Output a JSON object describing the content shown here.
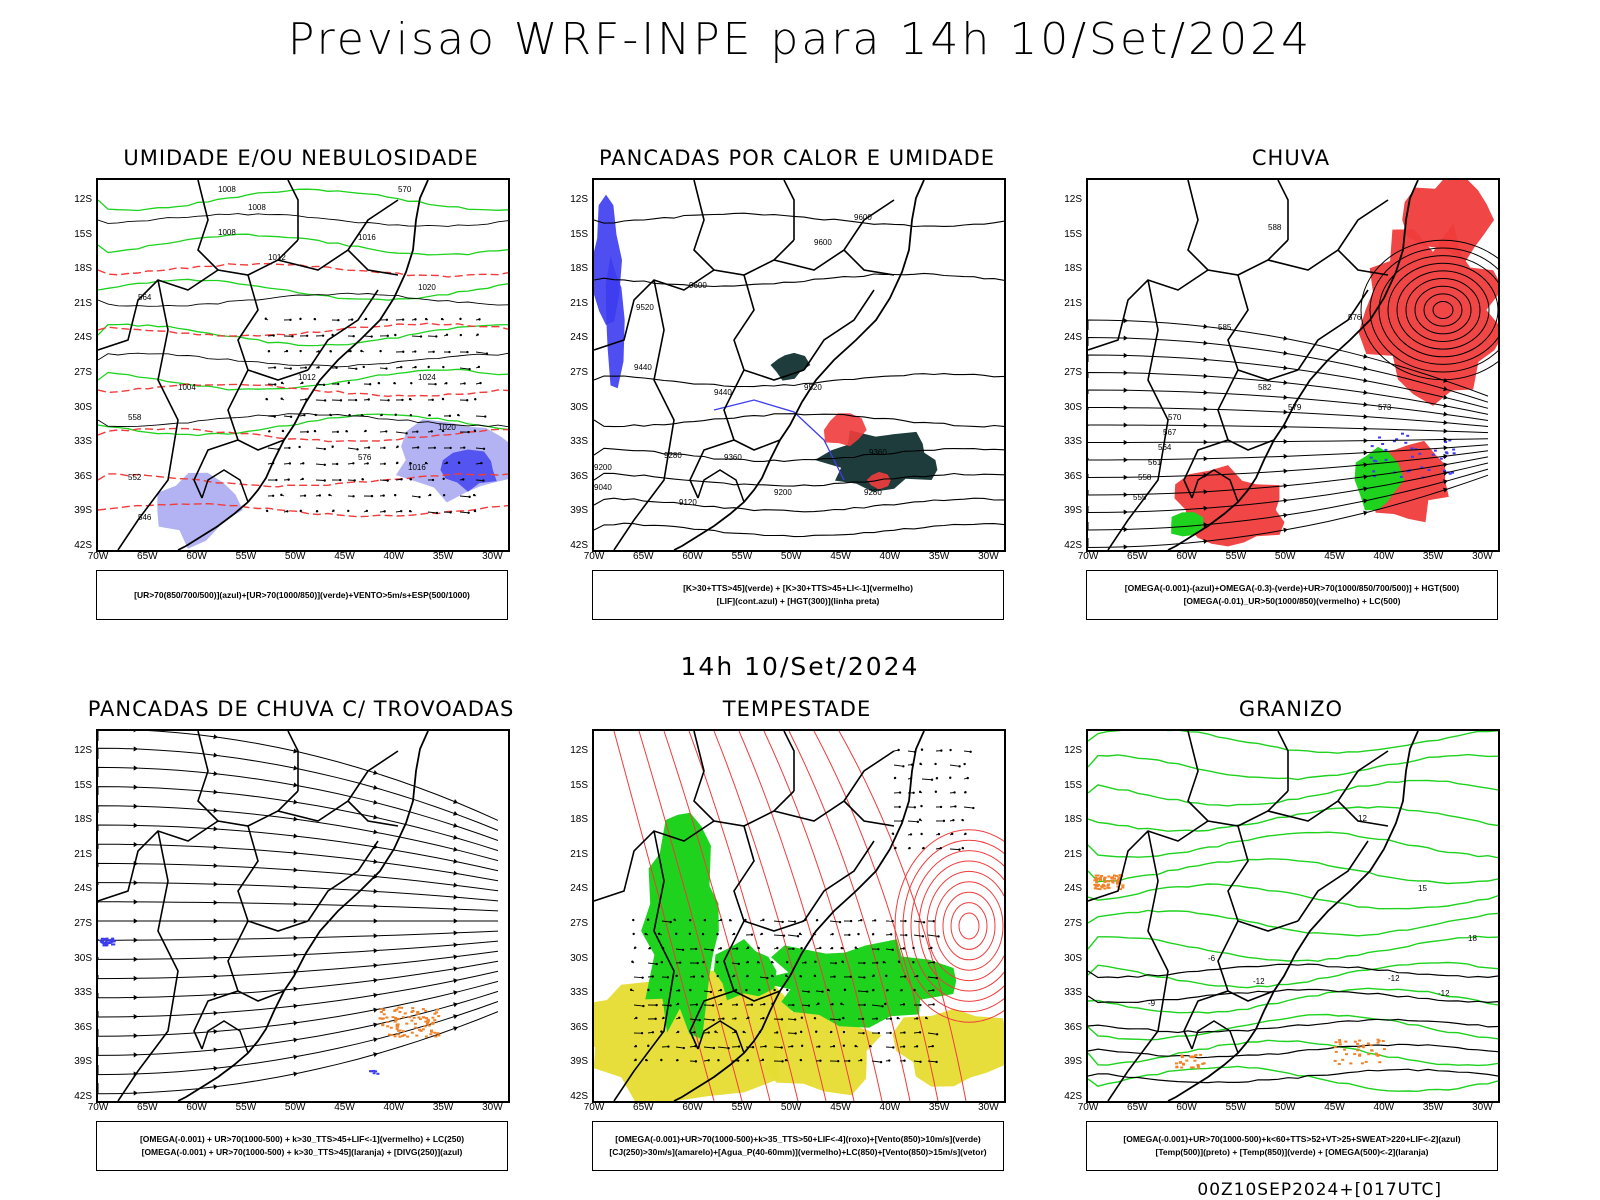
{
  "title": "Previsao WRF-INPE  para 14h 10/Set/2024",
  "mid_label": "14h 10/Set/2024",
  "footer": "00Z10SEP2024+[017UTC]",
  "lat_ticks": [
    "12S",
    "15S",
    "18S",
    "21S",
    "24S",
    "27S",
    "30S",
    "33S",
    "36S",
    "39S",
    "42S"
  ],
  "lon_ticks": [
    "70W",
    "65W",
    "60W",
    "55W",
    "50W",
    "45W",
    "40W",
    "35W",
    "30W"
  ],
  "panels": [
    {
      "id": "umidade",
      "title": "UMIDADE E/OU NEBULOSIDADE",
      "legend": [
        "[UR>70(850/700/500)](azul)+[UR>70(1000/850)](verde)+VENTO>5m/s+ESP(500/1000)"
      ],
      "contour_labels": [
        "1008",
        "1008",
        "1008",
        "1012",
        "1016",
        "1020",
        "1024",
        "1004",
        "1012",
        "1020",
        "1016",
        "570",
        "576",
        "564",
        "558",
        "552",
        "546"
      ]
    },
    {
      "id": "pancadas-calor",
      "title": "PANCADAS POR CALOR E UMIDADE",
      "legend": [
        "[K>30+TTS>45](verde)  +  [K>30+TTS>45+LI<-1](vermelho)",
        "[LIF](cont.azul)  +  [HGT(300)](linha preta)"
      ],
      "contour_labels": [
        "9600",
        "9600",
        "9600",
        "9520",
        "9520",
        "9440",
        "9440",
        "9360",
        "9360",
        "9280",
        "9280",
        "9200",
        "9200",
        "9120",
        "9040"
      ]
    },
    {
      "id": "chuva",
      "title": "CHUVA",
      "legend": [
        "[OMEGA(-0.001)-(azul)+OMEGA(-0.3)-(verde)+UR>70(1000/850/700/500)]  +  HGT(500)",
        "[OMEGA(-0.01)_UR>50(1000/850)(vermelho)  +  LC(500)"
      ],
      "contour_labels": [
        "588",
        "585",
        "582",
        "579",
        "576",
        "573",
        "570",
        "567",
        "564",
        "561",
        "558",
        "555"
      ]
    },
    {
      "id": "trovoadas",
      "title": "PANCADAS DE CHUVA C/ TROVOADAS",
      "legend": [
        "[OMEGA(-0.001)  +  UR>70(1000-500)  +  k>30_TTS>45+LIF<-1](vermelho)  +  LC(250)",
        "[OMEGA(-0.001)  +  UR>70(1000-500)  +  k>30_TTS>45](laranja)  +  [DIVG(250)](azul)"
      ],
      "contour_labels": []
    },
    {
      "id": "tempestade",
      "title": "TEMPESTADE",
      "legend": [
        "[OMEGA(-0.001)+UR>70(1000-500)+k>35_TTS>50+LIF<-4](roxo)+[Vento(850)>10m/s](verde)",
        "[CJ(250)>30m/s](amarelo)+[Agua_P(40-60mm)](vermelho)+LC(850)+[Vento(850)>15m/s](vetor)"
      ],
      "contour_labels": []
    },
    {
      "id": "granizo",
      "title": "GRANIZO",
      "legend": [
        "[OMEGA(-0.001)+UR>70(1000-500)+k<60+TTS>52+VT>25+SWEAT>220+LIF<-2](azul)",
        "[Temp(500)](preto)  +  [Temp(850)](verde)  +  [OMEGA(500)<-2](laranja)"
      ],
      "contour_labels": [
        "-12",
        "-12",
        "-12",
        "-9",
        "-6",
        "12",
        "15",
        "18"
      ]
    }
  ],
  "colors": {
    "black": "#000000",
    "red": "#f03c3c",
    "green": "#1ed21e",
    "blue": "#3c3cf0",
    "lightblue": "#a0a0f0",
    "darkgreen": "#1e3c3c",
    "yellow": "#e6dc32",
    "orange": "#f08228"
  }
}
